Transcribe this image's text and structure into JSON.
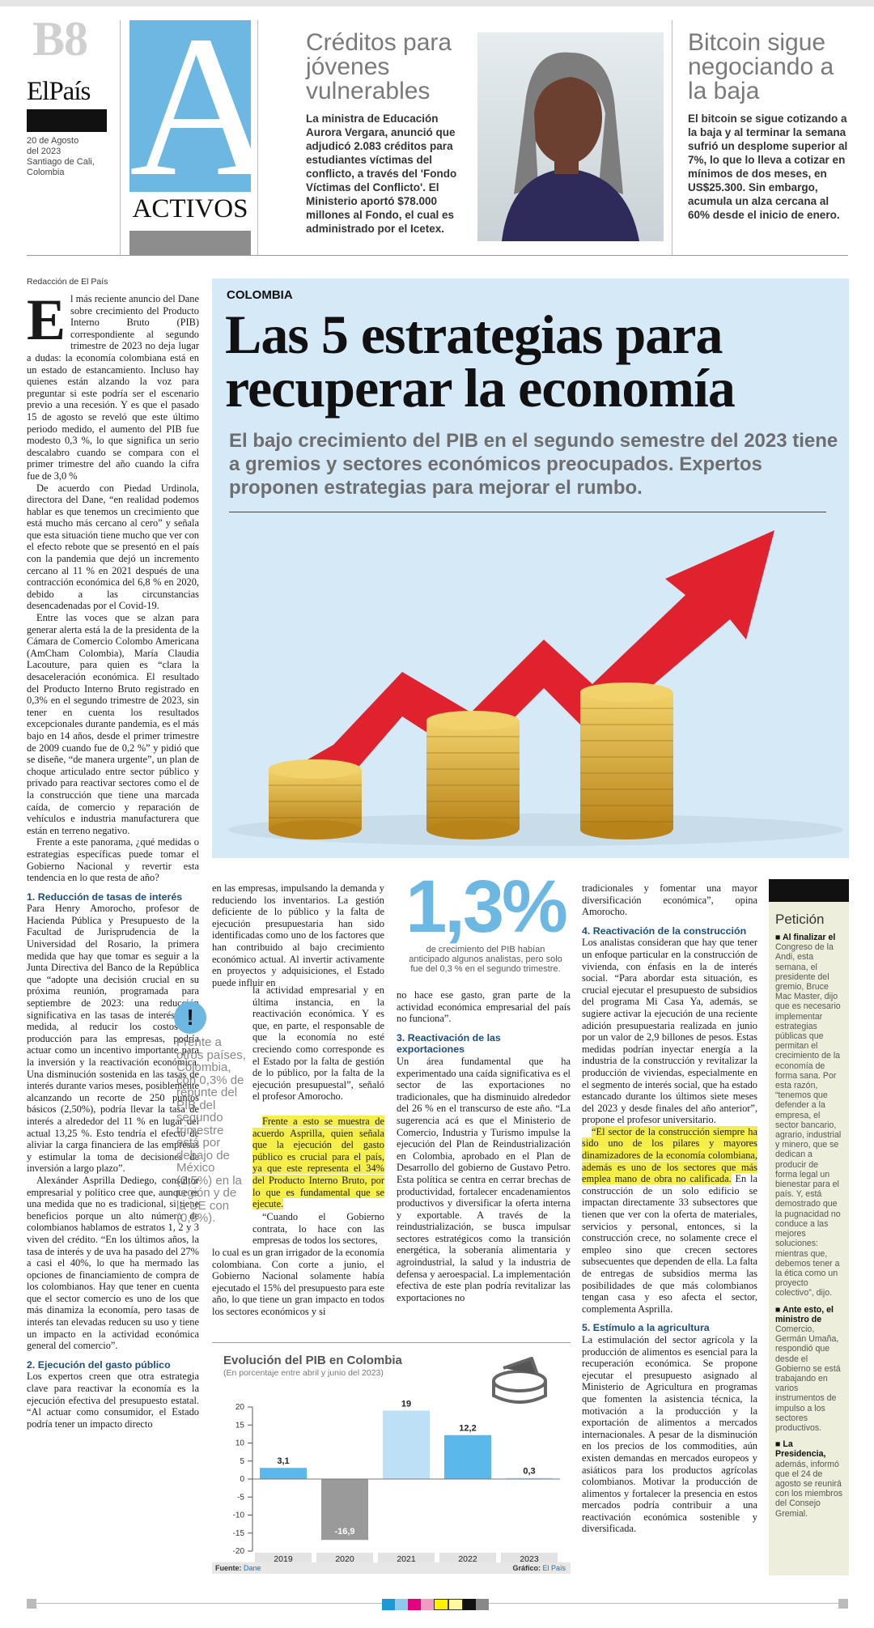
{
  "masthead": {
    "page": "B8",
    "paper": "ElPaís",
    "date_line1": "20 de Agosto",
    "date_line2": "del 2023",
    "place_line1": "Santiago de Cali,",
    "place_line2": "Colombia",
    "section_letter": "A",
    "section_name": "ACTIVOS"
  },
  "brief1": {
    "title": "Créditos para jóvenes vulnerables",
    "body": "La ministra de Educación Aurora Vergara, anunció que adjudicó 2.083 créditos para estudiantes víctimas del conflicto, a través del 'Fondo Víctimas del Conflicto'. El Ministerio aportó $78.000 millones al Fondo, el cual es administrado por el Icetex."
  },
  "brief2": {
    "title": "Bitcoin sigue negociando a la baja",
    "body": "El bitcoin se sigue cotizando a la baja y al terminar la semana sufrió un desplome superior al 7%, lo que lo lleva a cotizar en mínimos de dos meses, en US$25.300. Sin embargo, acumula un alza cercana al 60% desde el inicio de enero."
  },
  "byline": "Redacción de El País",
  "article": {
    "kicker": "COLOMBIA",
    "headline": "Las 5 estrategias para recuperar la economía",
    "deck": "El bajo crecimiento del PIB en el segundo semestre del 2023 tiene a gremios y sectores económicos preocupados. Expertos proponen estrategias para mejorar el rumbo.",
    "col1": {
      "drop_cap": "E",
      "p1": "l más reciente anuncio del Dane sobre crecimiento del Producto Interno Bruto (PIB) correspondiente al segundo trimestre de 2023 no deja lugar a dudas: la economía colombiana está en un estado de estancamiento. Incluso hay quienes están alzando la voz para preguntar si este podría ser el escenario previo a una recesión. Y es que el pasado 15 de agosto se reveló que este último periodo medido, el aumento del PIB fue modesto 0,3 %, lo que significa un serio descalabro cuando se compara con el primer trimestre del año cuando la cifra fue de 3,0 %",
      "p2": "De acuerdo con Piedad Urdinola, directora del Dane, “en realidad podemos hablar es que tenemos un crecimiento que está mucho más cercano al cero” y señala que esta situación tiene mucho que ver con el efecto rebote que se presentó en el país con la pandemia que dejó un incremento cercano al 11 % en 2021 después de una contracción económica del 6,8 % en 2020, debido a las circunstancias desencadenadas por el Covid-19.",
      "p3": "Entre las voces que se alzan para generar alerta está la de la presidenta de la Cámara de Comercio Colombo Americana (AmCham Colombia), María Claudia Lacouture, para quien es “clara la desaceleración económica. El resultado del Producto Interno Bruto registrado en 0,3% en el segundo trimestre de 2023, sin tener en cuenta los resultados excepcionales durante pandemia, es el más bajo en 14 años, desde el primer trimestre de 2009 cuando fue de 0,2 %” y pidió que se diseñe, “de manera urgente”, un plan de choque articulado entre sector público y privado para reactivar sectores como el de la construcción que tiene una marcada caída, de comercio y reparación de vehículos e industria manufacturera que están en terreno negativo.",
      "p4": "Frente a este panorama, ¿qué medidas o estrategias específicas puede tomar el Gobierno Nacional y revertir esta tendencia en lo que resta de año?",
      "sub1": "1. Reducción de tasas de interés",
      "p5": "Para Henry Amorocho, profesor de Hacienda Pública y Presupuesto de la Facultad de Jurisprudencia de la Universidad del Rosario, la primera medida que hay que tomar es seguir a la Junta Directiva del Banco de la República que “adopte una decisión crucial en su próxima reunión, programada para septiembre de 2023: una reducción significativa en las tasas de interés. Esta medida, al reducir los costos de producción para las empresas, podría actuar como un incentivo importante para la inversión y la reactivación económica. Una disminución sostenida en las tasas de interés durante varios meses, posiblemente alcanzando un recorte de 250 puntos básicos (2,50%), podría llevar la tasa de interés a alrededor del 11 % en lugar del actual 13,25 %. Esto tendría el efecto de aliviar la carga financiera de las empresas y estimular la toma de decisiones de inversión a largo plazo”.",
      "p6": "Alexánder Asprilla Dediego, consultor empresarial y político cree que, aunque es una medida que no es tradicional, si tiene beneficios porque un alto número de colombianos hablamos de estratos 1, 2 y 3 viven del crédito. “En los últimos años, la tasa de interés y de uva ha pasado del 27% a casi el 40%, lo que ha mermado las opciones de financiamiento de compra de los colombianos. Hay que tener en cuenta que el sector comercio es uno de los que más dinamiza la economía, pero tasas de interés tan elevadas reducen su uso y tiene un impacto en la actividad económica general del comercio”.",
      "sub2": "2. Ejecución del gasto público",
      "p7": "Los expertos creen que otra estrategia clave para reactivar la economía es la ejecución efectiva del presupuesto estatal. “Al actuar como consumidor, el Estado podría tener un impacto directo"
    },
    "col2": {
      "p1": "en las empresas, impulsando la demanda y reduciendo los inventarios. La gestión deficiente de lo público y la falta de ejecución presupuestaria han sido identificadas como uno de los factores que han contribuido al bajo crecimiento económico actual. Al invertir activamente en proyectos y adquisiciones, el Estado puede influir en",
      "p2": "la actividad empresarial y en última instancia, en la reactivación económica. Y es que, en parte, el responsable de que la economía no esté creciendo como corresponde es el Estado por la falta de gestión de lo público, por la falta de la ejecución presupuestal”, señaló el profesor Amorocho.",
      "p3_pre": "Frente a esto se muestra de acuerdo Asprilla, quien señala que la ejecución del gasto público es crucial para el país, ya que este representa el 34% del Producto Interno Bruto, por lo que es fundamental que se ejecute.",
      "p4a": "“Cuando el Gobierno contrata, lo hace con las empresas de todos los sectores,",
      "p4b": "lo cual es un gran irrigador de la economía colombiana. Con corte a junio, el Gobierno Nacional solamente había ejecutado el 15% del presupuesto para este año, lo que tiene un gran impacto en todos los sectores económicos y si"
    },
    "sidebar_quote": {
      "icon": "!",
      "text": "Frente a otros países, Colombia, con 0,3% de repunte del PIB del segundo trimestre está por debajo de México (2,5%) en la región y de la UE con (0,5%)."
    },
    "stat": {
      "number": "1,3%",
      "caption": "de crecimiento del PIB habían anticipado algunos analistas, pero solo fue del 0,3 % en el segundo trimestre."
    },
    "col3": {
      "p1": "no hace ese gasto, gran parte de la actividad económica empresarial del país no funciona”.",
      "sub3": "3. Reactivación de las exportaciones",
      "p2": "Un área fundamental que ha experimentado una caída significativa es el sector de las exportaciones no tradicionales, que ha disminuido alrededor del 26 % en el transcurso de este año. “La sugerencia acá es que el Ministerio de Comercio, Industria y Turismo impulse la ejecución del Plan de Reindustrialización en Colombia, aprobado en el Plan de Desarrollo del gobierno de Gustavo Petro. Esta política se centra en cerrar brechas de productividad, fortalecer encadenamientos productivos y diversificar la oferta interna y exportable. A través de la reindustrialización, se busca impulsar sectores estratégicos como la transición energética, la soberanía alimentaria y agroindustrial, la salud y la industria de defensa y aeroespacial. La implementación efectiva de este plan podría revitalizar las exportaciones no"
    },
    "col4": {
      "p1": "tradicionales y fomentar una mayor diversificación económica”, opina Amorocho.",
      "sub4": "4. Reactivación de la construcción",
      "p2": "Los analistas consideran que hay que tener un enfoque particular en la construcción de vivienda, con énfasis en la de interés social. “Para abordar esta situación, es crucial ejecutar el presupuesto de subsidios del programa Mi Casa Ya, además, se sugiere activar la ejecución de una reciente adición presupuestaria realizada en junio por un valor de 2,9 billones de pesos. Estas medidas podrían inyectar energía a la industria de la construcción y revitalizar la producción de viviendas, especialmente en el segmento de interés social, que ha estado estancado durante los últimos siete meses del 2023 y desde finales del año anterior”, propone el profesor universitario.",
      "p3_hl": "“El sector de la construcción siempre ha sido uno de los pilares y mayores dinamizadores de la economía colombiana, además es uno de los sectores que más emplea mano de obra no calificada.",
      "p3_rest": "En la construcción de un solo edificio se impactan directamente 33 subsectores que tienen que ver con la oferta de materiales, servicios y personal, entonces, si la construcción crece, no solamente crece el empleo sino que crecen sectores subsecuentes que dependen de ella. La falta de entregas de subsidios merma las posibilidades de que más colombianos tengan casa y eso afecta el sector, complementa Asprilla.",
      "sub5": "5. Estímulo a la agricultura",
      "p4": "La estimulación del sector agrícola y la producción de alimentos es esencial para la recuperación económica. Se propone ejecutar el presupuesto asignado al Ministerio de Agricultura en programas que fomenten la asistencia técnica, la motivación a la producción y la exportación de alimentos a mercados internacionales. A pesar de la disminución en los precios de los commodities, aún existen demandas en mercados europeos y asiáticos para los productos agrícolas colombianos. Motivar la producción de alimentos y fortalecer la presencia en estos mercados podría contribuir a una reactivación económica sostenible y diversificada."
    },
    "peticion": {
      "title": "Petición",
      "b1_lead": "Al finalizar el",
      "b1": "Congreso de la Andi, esta semana, el presidente del gremio, Bruce Mac Master, dijo que es necesario implementar estrategias públicas que permitan el crecimiento de la economía de forma sana. Por esta razón, “tenemos que defender a la empresa, el sector bancario, agrario, industrial y minero, que se dedican a producir de forma legal un bienestar para el país. Y, está demostrado que la pugnacidad no conduce a las mejores soluciones: mientras que, debemos tener a la ética como un proyecto colectivo”, dijo.",
      "b2_lead": "Ante esto, el ministro de",
      "b2": "Comercio, Germán Umaña, respondió que desde el Gobierno se está trabajando en varios instrumentos de impulso a los sectores productivos.",
      "b3_lead": "La Presidencia,",
      "b3": "además, informó que el 24 de agosto se reunirá con los miembros del Consejo Gremial."
    }
  },
  "chart_data": {
    "type": "bar",
    "title": "Evolución del PIB en Colombia",
    "subtitle": "(En porcentaje entre abril y junio del 2023)",
    "categories": [
      "2019",
      "2020",
      "2021",
      "2022",
      "2023"
    ],
    "values": [
      3.1,
      -16.9,
      19,
      12.2,
      0.3
    ],
    "value_labels": [
      "3,1",
      "-16,9",
      "19",
      "12,2",
      "0,3"
    ],
    "bar_colors": [
      "#5bb8ea",
      "#9a9a9a",
      "#bde0f7",
      "#5bb8ea",
      "#bde0f7"
    ],
    "yticks": [
      "20",
      "15",
      "10",
      "5",
      "0",
      "-5",
      "-10",
      "-15",
      "-20"
    ],
    "ylim": [
      -20,
      20
    ],
    "source_label": "Fuente:",
    "source": "Dane",
    "graphic_label": "Gráfico:",
    "graphic": "El País"
  },
  "colors": {
    "section_blue": "#6cb8e3",
    "panel_blue": "#d6e9f6",
    "highlight": "#f6ef4a",
    "arrow_red": "#e0222f",
    "coin_gold": "#d9a62a",
    "peticion_bg": "#eeeedd"
  },
  "image": {
    "alt": "economy-growth-coins-arrow"
  }
}
